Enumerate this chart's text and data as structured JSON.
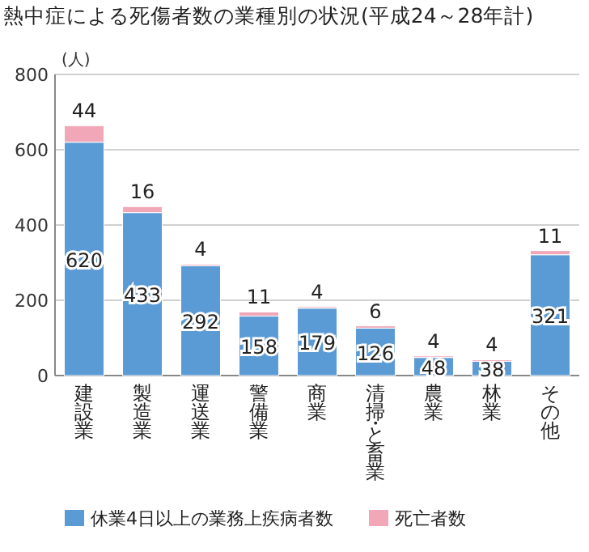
{
  "chart_data": {
    "type": "bar",
    "stacked": true,
    "title": "熱中症による死傷者数の業種別の状況(平成24～28年計)",
    "ylabel": "(人)",
    "categories": [
      "建設業",
      "製造業",
      "運送業",
      "警備業",
      "商業",
      "清掃・と畜業",
      "農業",
      "林業",
      "その他"
    ],
    "series": [
      {
        "name": "休業4日以上の業務上疾病者数",
        "color": "#5b9bd5",
        "values": [
          620,
          433,
          292,
          158,
          179,
          126,
          48,
          38,
          321
        ]
      },
      {
        "name": "死亡者数",
        "color": "#f2a7b8",
        "values": [
          44,
          16,
          4,
          11,
          4,
          6,
          4,
          4,
          11
        ]
      }
    ],
    "ylim": [
      0,
      800
    ],
    "yticks": [
      0,
      200,
      400,
      600,
      800
    ],
    "grid": "y",
    "legend": "bottom",
    "data_labels": true
  }
}
